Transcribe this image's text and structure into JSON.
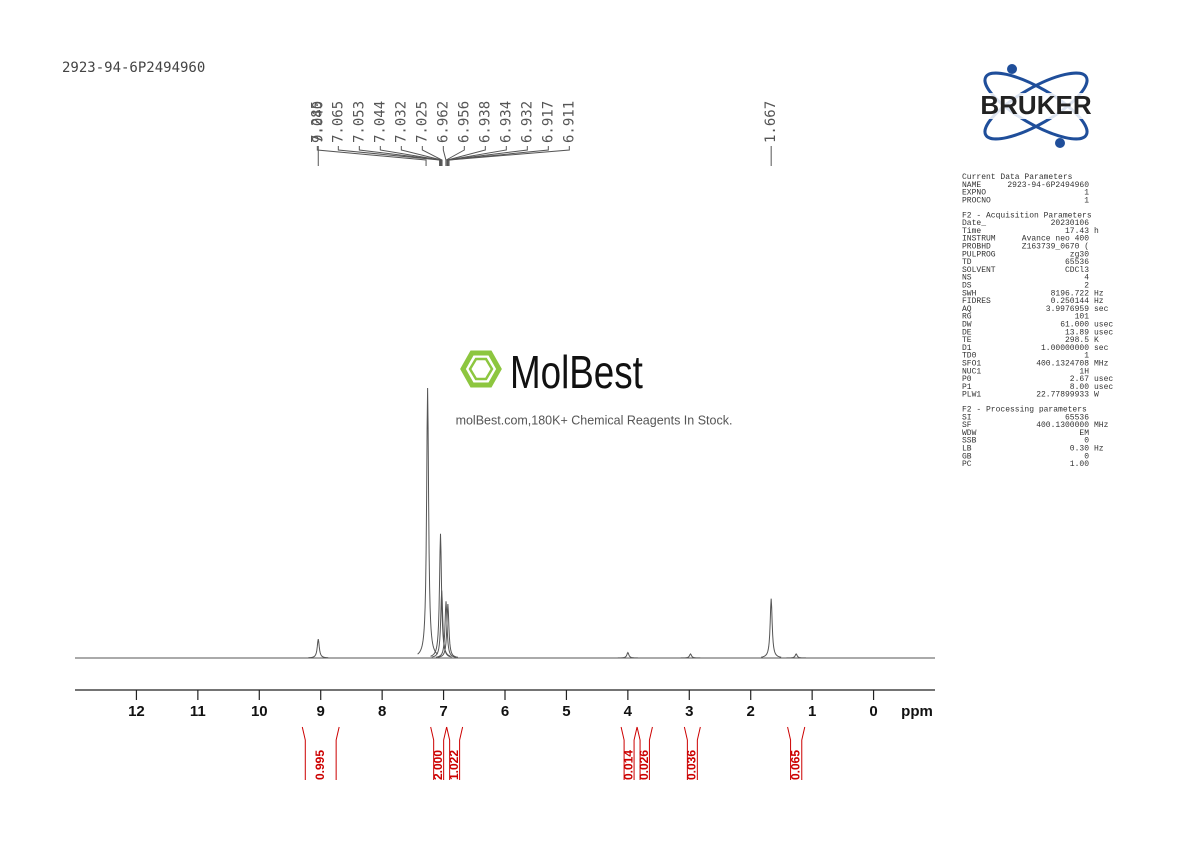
{
  "header": "2923-94-6P2494960",
  "logo": "BRUKER",
  "watermark": {
    "brand": "MolBest",
    "tagline": "molBest.com,180K+ Chemical Reagents In Stock."
  },
  "chart_data": {
    "type": "nmr",
    "x_label": "ppm",
    "xlim": [
      13,
      -1
    ],
    "xticks": [
      12,
      11,
      10,
      9,
      8,
      7,
      6,
      5,
      4,
      3,
      2,
      1,
      0
    ],
    "ylim": [
      0,
      100
    ],
    "color": "#555555",
    "peaks": {
      "ppm": [
        9.04,
        7.26,
        7.05,
        7.03,
        6.96,
        6.93,
        4.0,
        2.98,
        1.667,
        1.26
      ],
      "heights": [
        7,
        100,
        46,
        25,
        21,
        20,
        2,
        1.5,
        22,
        1.5
      ]
    },
    "peak_labels": [
      {
        "value": 9.04,
        "label": "9.040"
      },
      {
        "value": 7.285,
        "label": "7.285"
      },
      {
        "value": 7.065,
        "label": "7.065"
      },
      {
        "value": 7.053,
        "label": "7.053"
      },
      {
        "value": 7.044,
        "label": "7.044"
      },
      {
        "value": 7.032,
        "label": "7.032"
      },
      {
        "value": 7.025,
        "label": "7.025"
      },
      {
        "value": 6.962,
        "label": "6.962"
      },
      {
        "value": 6.956,
        "label": "6.956"
      },
      {
        "value": 6.938,
        "label": "6.938"
      },
      {
        "value": 6.934,
        "label": "6.934"
      },
      {
        "value": 6.932,
        "label": "6.932"
      },
      {
        "value": 6.917,
        "label": "6.917"
      },
      {
        "value": 6.911,
        "label": "6.911"
      },
      {
        "value": 1.667,
        "label": "1.667"
      }
    ],
    "integrals": {
      "color": "#cc0000",
      "ranges": [
        [
          9.3,
          8.7
        ],
        [
          7.21,
          6.95
        ],
        [
          6.95,
          6.69
        ],
        [
          4.11,
          3.85
        ],
        [
          3.85,
          3.6
        ],
        [
          3.08,
          2.82
        ],
        [
          1.4,
          1.12
        ]
      ],
      "values": [
        0.995,
        2,
        1.022,
        0.014,
        0.026,
        0.036,
        0.065
      ],
      "value_labels": [
        "0.995",
        "2.000",
        "1.022",
        "0.014",
        "0.026",
        "0.036",
        "0.065"
      ]
    }
  },
  "parameters": [
    {
      "title": "Current Data Parameters",
      "rows": [
        [
          "NAME",
          "2923-94-6P2494960"
        ],
        [
          "EXPNO",
          "1"
        ],
        [
          "PROCNO",
          "1"
        ]
      ]
    },
    {
      "title": "F2 - Acquisition Parameters",
      "rows": [
        [
          "Date_",
          "20230106"
        ],
        [
          "Time",
          "17.43",
          "h"
        ],
        [
          "INSTRUM",
          "Avance neo 400"
        ],
        [
          "PROBHD",
          "Z163739_0670 ("
        ],
        [
          "PULPROG",
          "zg30"
        ],
        [
          "TD",
          "65536"
        ],
        [
          "SOLVENT",
          "CDCl3"
        ],
        [
          "NS",
          "4"
        ],
        [
          "DS",
          "2"
        ],
        [
          "SWH",
          "8196.722",
          "Hz"
        ],
        [
          "FIDRES",
          "0.250144",
          "Hz"
        ],
        [
          "AQ",
          "3.9976959",
          "sec"
        ],
        [
          "RG",
          "101"
        ],
        [
          "DW",
          "61.000",
          "usec"
        ],
        [
          "DE",
          "13.89",
          "usec"
        ],
        [
          "TE",
          "298.5",
          "K"
        ],
        [
          "D1",
          "1.00000000",
          "sec"
        ],
        [
          "TD0",
          "1"
        ],
        [
          "SFO1",
          "400.1324708",
          "MHz"
        ],
        [
          "NUC1",
          "1H"
        ],
        [
          "P0",
          "2.67",
          "usec"
        ],
        [
          "P1",
          "8.00",
          "usec"
        ],
        [
          "PLW1",
          "22.77899933",
          "W"
        ]
      ]
    },
    {
      "title": "F2 - Processing parameters",
      "rows": [
        [
          "SI",
          "65536"
        ],
        [
          "SF",
          "400.1300000",
          "MHz"
        ],
        [
          "WDW",
          "EM"
        ],
        [
          "SSB",
          "0"
        ],
        [
          "LB",
          "0.30",
          "Hz"
        ],
        [
          "GB",
          "0"
        ],
        [
          "PC",
          "1.00"
        ]
      ]
    }
  ]
}
